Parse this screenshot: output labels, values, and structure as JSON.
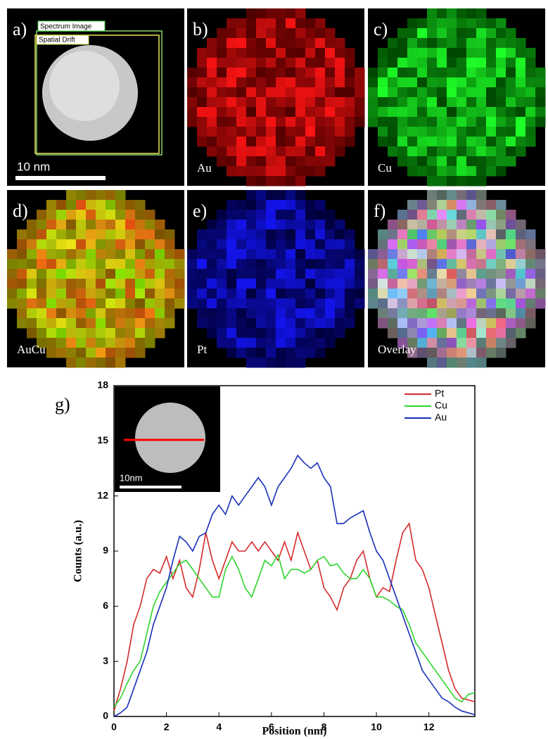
{
  "panels": [
    {
      "label": "a)",
      "caption": "10 nm",
      "boxes": [
        "Spectrum Image",
        "Spatial Drift"
      ]
    },
    {
      "label": "b)",
      "caption": "Au"
    },
    {
      "label": "c)",
      "caption": "Cu"
    },
    {
      "label": "d)",
      "caption": "AuCu"
    },
    {
      "label": "e)",
      "caption": "Pt"
    },
    {
      "label": "f)",
      "caption": "Overlay"
    }
  ],
  "chart_data": {
    "type": "line",
    "label": "g)",
    "inset_scale": "10nm",
    "xlabel": "Position (nm)",
    "ylabel": "Counts (a.u.)",
    "x": [
      0,
      0.25,
      0.5,
      0.75,
      1,
      1.25,
      1.5,
      1.75,
      2,
      2.25,
      2.5,
      2.75,
      3,
      3.25,
      3.5,
      3.75,
      4,
      4.25,
      4.5,
      4.75,
      5,
      5.25,
      5.5,
      5.75,
      6,
      6.25,
      6.5,
      6.75,
      7,
      7.25,
      7.5,
      7.75,
      8,
      8.25,
      8.5,
      8.75,
      9,
      9.25,
      9.5,
      9.75,
      10,
      10.25,
      10.5,
      10.75,
      11,
      11.25,
      11.5,
      11.75,
      12,
      12.25,
      12.5,
      12.75,
      13,
      13.25,
      13.5,
      13.75
    ],
    "series": [
      {
        "name": "Pt",
        "color": "#d42a2a",
        "values": [
          0.3,
          1.5,
          3,
          5,
          6,
          7.5,
          8,
          7.8,
          8.7,
          7.5,
          8.5,
          7,
          6.5,
          8,
          10,
          8.5,
          7.5,
          8.5,
          9.5,
          9,
          9,
          9.5,
          9,
          9.5,
          9,
          8.5,
          9.5,
          8.5,
          10,
          9,
          8,
          8.5,
          7,
          6.5,
          5.8,
          7,
          7.5,
          8.5,
          9,
          7.5,
          6.5,
          7,
          6.8,
          8.5,
          10,
          10.5,
          8.5,
          8,
          7,
          5.5,
          4,
          2.5,
          1.5,
          1,
          0.9,
          0.8
        ]
      },
      {
        "name": "Cu",
        "color": "#2ed42e",
        "values": [
          0.5,
          1,
          1.8,
          2.5,
          3,
          4.5,
          6,
          6.8,
          7.3,
          7.8,
          8.3,
          8.5,
          8,
          7.5,
          7,
          6.5,
          6.5,
          8,
          8.7,
          8,
          7,
          6.5,
          7.5,
          8.5,
          8.2,
          8.8,
          7.5,
          8,
          8,
          7.8,
          8,
          8.5,
          8.7,
          8.2,
          8.3,
          7.8,
          7.5,
          7.5,
          8,
          7.5,
          6.5,
          6.5,
          6.3,
          6,
          5.8,
          5,
          4,
          3.5,
          3,
          2.5,
          2,
          1.5,
          1,
          0.8,
          1.2,
          1.3
        ]
      },
      {
        "name": "Au",
        "color": "#1a2fb8",
        "values": [
          0,
          0.2,
          0.5,
          1.5,
          2.5,
          3.5,
          5,
          6,
          7,
          8.5,
          9.8,
          9.5,
          9,
          9.8,
          10,
          11,
          11.5,
          11,
          12,
          11.5,
          12,
          12.5,
          13,
          12.5,
          11.5,
          12.5,
          13,
          13.5,
          14.2,
          13.8,
          13.5,
          13.8,
          13,
          12.5,
          10.5,
          10.5,
          10.8,
          11,
          11.2,
          10,
          9,
          8.5,
          7.5,
          6.5,
          5.5,
          4.5,
          3.5,
          2.5,
          2,
          1.5,
          1,
          0.8,
          0.5,
          0.3,
          0.2,
          0.1
        ]
      }
    ],
    "xlim": [
      0,
      13.75
    ],
    "xticks": [
      0,
      2,
      4,
      6,
      8,
      10,
      12
    ],
    "ylim": [
      0,
      18
    ],
    "yticks": [
      0,
      3,
      6,
      9,
      12,
      15,
      18
    ],
    "legend": "top-right"
  }
}
